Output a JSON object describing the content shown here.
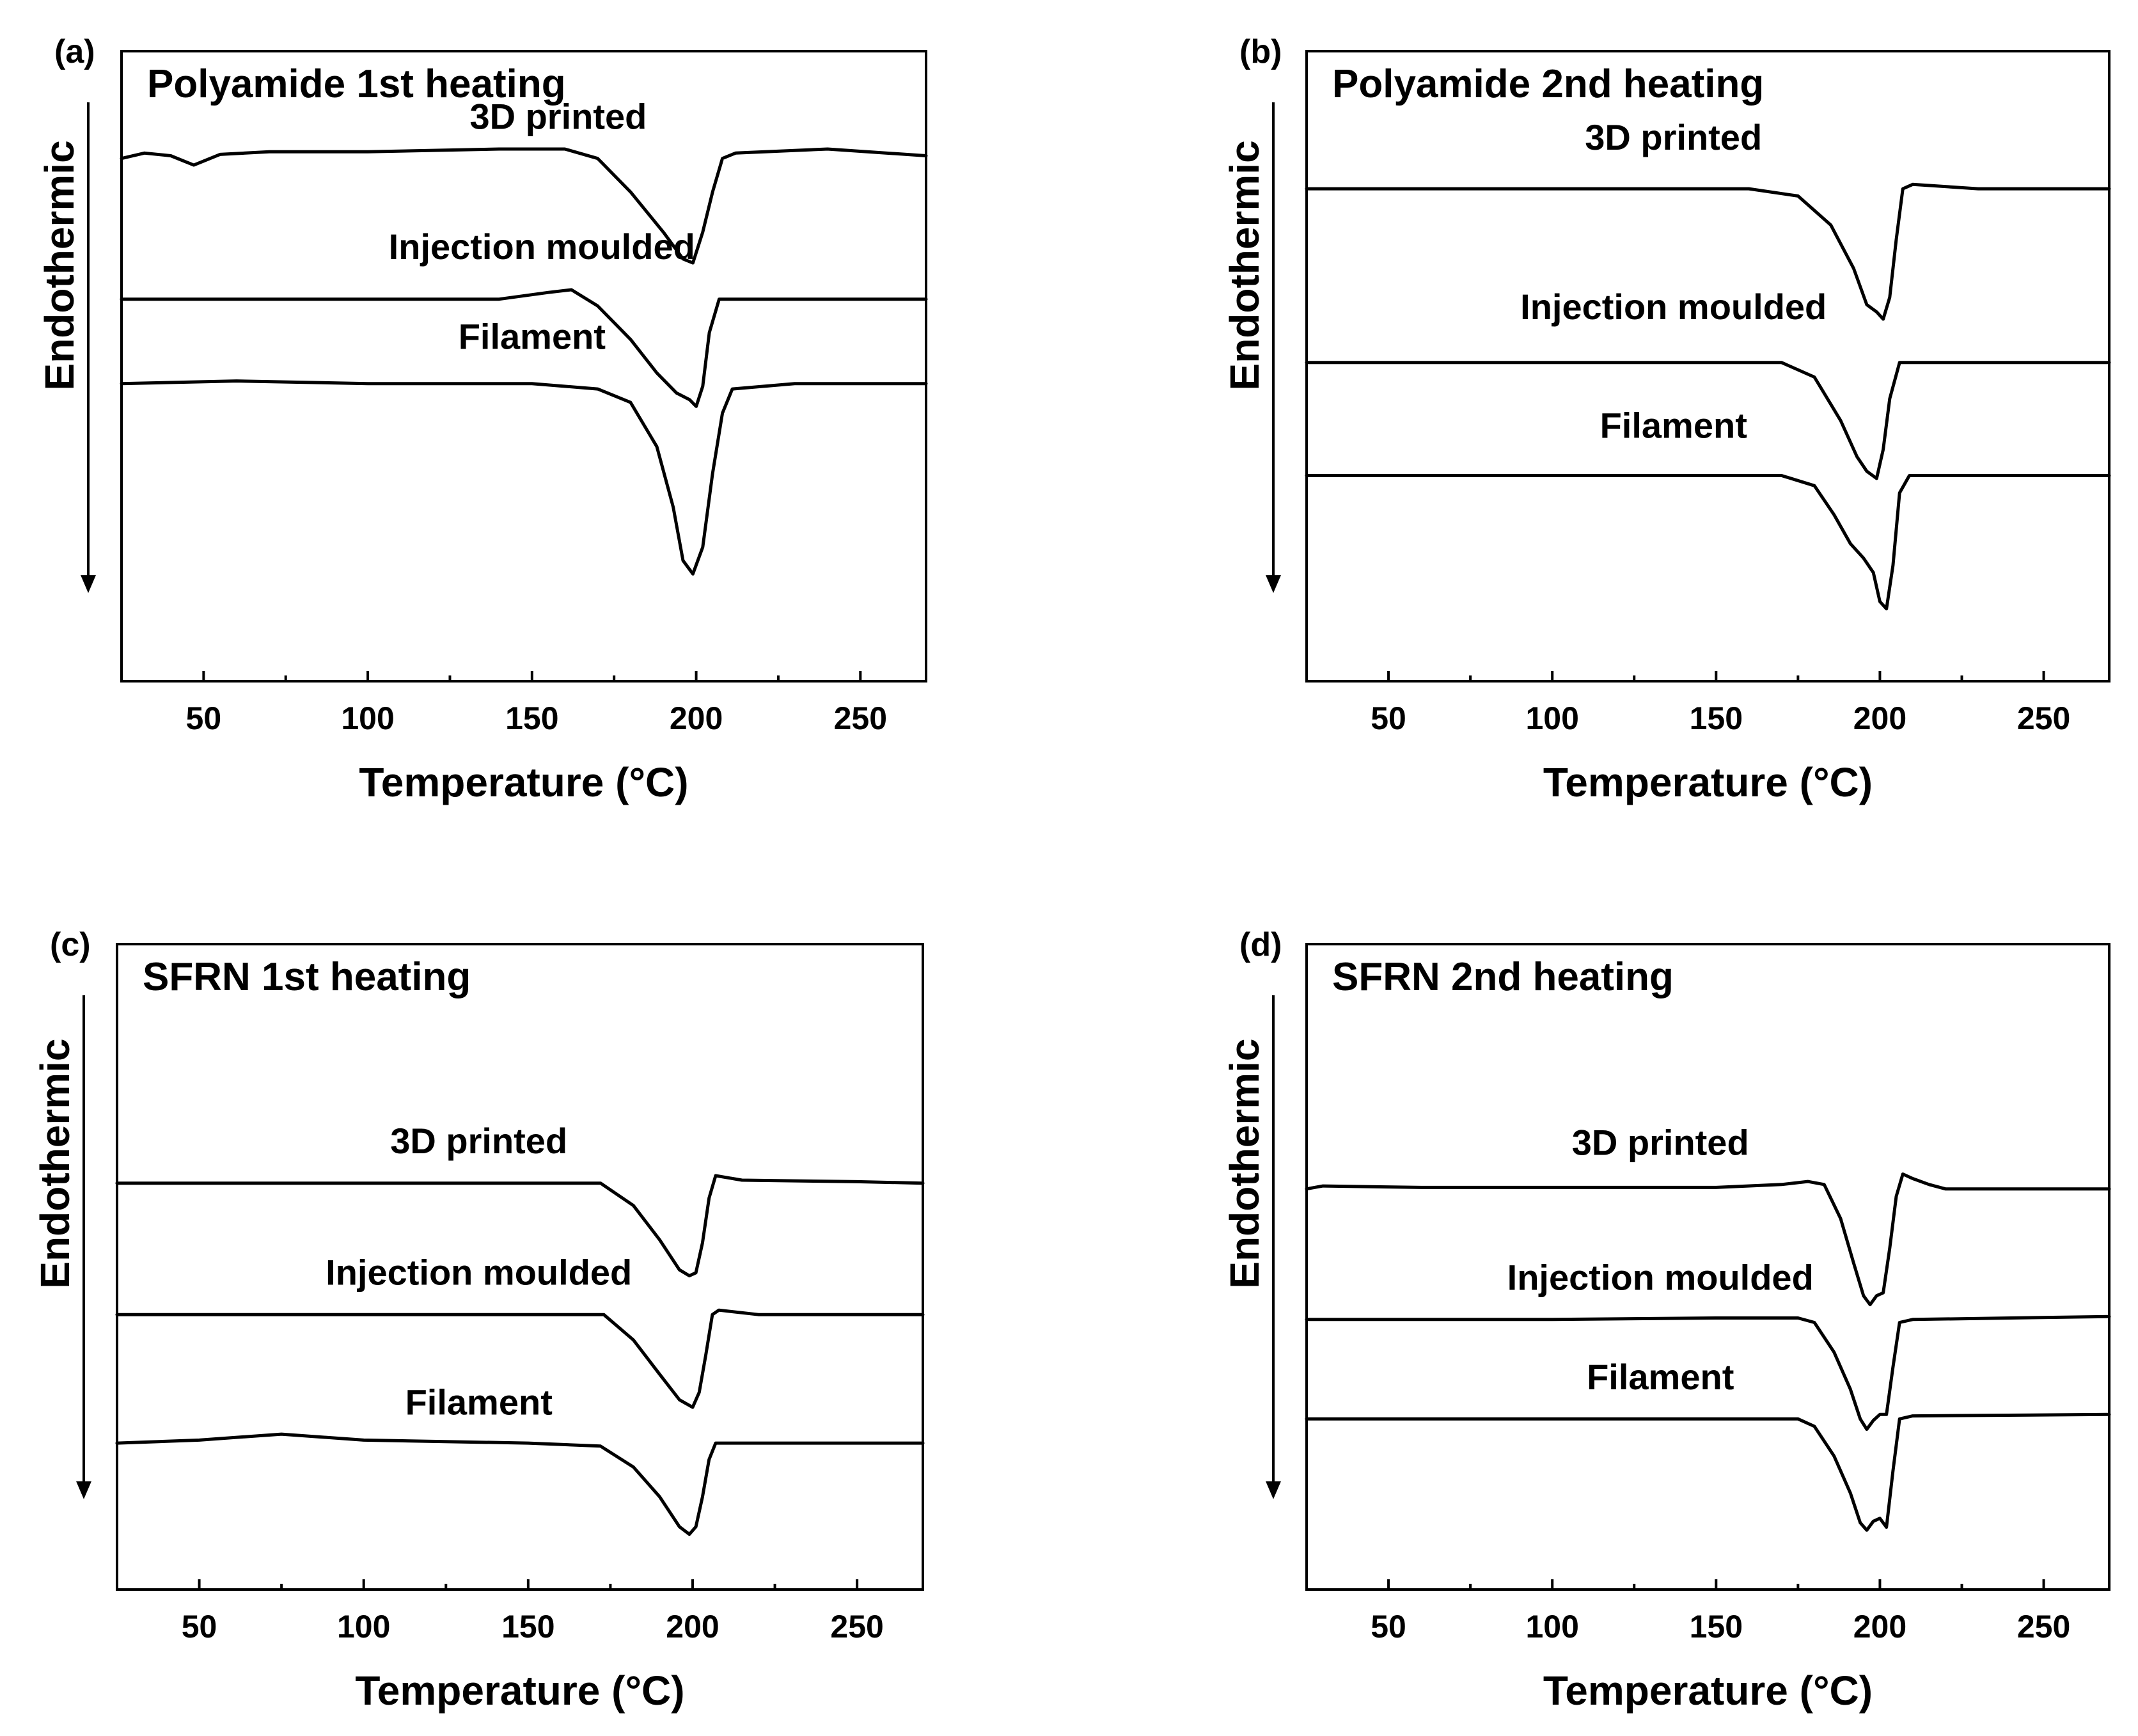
{
  "figure": {
    "background": "#ffffff",
    "line_color": "#000000"
  },
  "chart_data": [
    {
      "type": "line",
      "panel": "(a)",
      "title": "Polyamide 1st heating",
      "xlabel": "Temperature (°C)",
      "ylabel": "Endothermic",
      "xlim": [
        25,
        270
      ],
      "xticks": [
        50,
        100,
        150,
        200,
        250
      ],
      "ylim": [
        -3.9,
        0.8
      ],
      "yticks_visible": false,
      "series": [
        {
          "name": "3D printed",
          "label_at": 158,
          "label_y": 0.22,
          "points": [
            [
              25,
              0
            ],
            [
              32,
              0.04
            ],
            [
              40,
              0.02
            ],
            [
              47,
              -0.05
            ],
            [
              55,
              0.03
            ],
            [
              70,
              0.05
            ],
            [
              100,
              0.05
            ],
            [
              140,
              0.07
            ],
            [
              160,
              0.07
            ],
            [
              170,
              0
            ],
            [
              180,
              -0.25
            ],
            [
              190,
              -0.55
            ],
            [
              196,
              -0.75
            ],
            [
              199,
              -0.78
            ],
            [
              202,
              -0.55
            ],
            [
              205,
              -0.25
            ],
            [
              208,
              0.0
            ],
            [
              212,
              0.04
            ],
            [
              240,
              0.07
            ],
            [
              270,
              0.02
            ]
          ]
        },
        {
          "name": "Injection moulded",
          "label_at": 153,
          "label_y": -0.75,
          "points": [
            [
              25,
              -1.05
            ],
            [
              80,
              -1.05
            ],
            [
              140,
              -1.05
            ],
            [
              155,
              -1.0
            ],
            [
              162,
              -0.98
            ],
            [
              170,
              -1.1
            ],
            [
              180,
              -1.35
            ],
            [
              188,
              -1.6
            ],
            [
              194,
              -1.75
            ],
            [
              198,
              -1.8
            ],
            [
              200,
              -1.85
            ],
            [
              202,
              -1.7
            ],
            [
              204,
              -1.3
            ],
            [
              207,
              -1.05
            ],
            [
              220,
              -1.05
            ],
            [
              270,
              -1.05
            ]
          ]
        },
        {
          "name": "Filament",
          "label_at": 150,
          "label_y": -1.42,
          "points": [
            [
              25,
              -1.68
            ],
            [
              60,
              -1.66
            ],
            [
              100,
              -1.68
            ],
            [
              150,
              -1.68
            ],
            [
              170,
              -1.72
            ],
            [
              180,
              -1.82
            ],
            [
              188,
              -2.15
            ],
            [
              193,
              -2.6
            ],
            [
              196,
              -3.0
            ],
            [
              199,
              -3.1
            ],
            [
              202,
              -2.9
            ],
            [
              205,
              -2.35
            ],
            [
              208,
              -1.9
            ],
            [
              211,
              -1.72
            ],
            [
              230,
              -1.68
            ],
            [
              270,
              -1.68
            ]
          ]
        }
      ]
    },
    {
      "type": "line",
      "panel": "(b)",
      "title": "Polyamide 2nd heating",
      "xlabel": "Temperature (°C)",
      "ylabel": "Endothermic",
      "xlim": [
        25,
        270
      ],
      "xticks": [
        50,
        100,
        150,
        200,
        250
      ],
      "ylim": [
        -3.4,
        0.95
      ],
      "yticks_visible": false,
      "series": [
        {
          "name": "3D printed",
          "label_at": 137,
          "label_y": 0.27,
          "points": [
            [
              25,
              0
            ],
            [
              100,
              0
            ],
            [
              160,
              0.0
            ],
            [
              175,
              -0.05
            ],
            [
              185,
              -0.25
            ],
            [
              192,
              -0.55
            ],
            [
              196,
              -0.8
            ],
            [
              199,
              -0.85
            ],
            [
              201,
              -0.9
            ],
            [
              203,
              -0.75
            ],
            [
              205,
              -0.35
            ],
            [
              207,
              0.0
            ],
            [
              210,
              0.03
            ],
            [
              230,
              0.0
            ],
            [
              270,
              0.0
            ]
          ]
        },
        {
          "name": "Injection moulded",
          "label_at": 137,
          "label_y": -0.9,
          "points": [
            [
              25,
              -1.2
            ],
            [
              100,
              -1.2
            ],
            [
              170,
              -1.2
            ],
            [
              180,
              -1.3
            ],
            [
              188,
              -1.6
            ],
            [
              193,
              -1.85
            ],
            [
              196,
              -1.95
            ],
            [
              199,
              -2.0
            ],
            [
              201,
              -1.8
            ],
            [
              203,
              -1.45
            ],
            [
              206,
              -1.2
            ],
            [
              220,
              -1.2
            ],
            [
              270,
              -1.2
            ]
          ]
        },
        {
          "name": "Filament",
          "label_at": 137,
          "label_y": -1.72,
          "points": [
            [
              25,
              -1.98
            ],
            [
              100,
              -1.98
            ],
            [
              170,
              -1.98
            ],
            [
              180,
              -2.05
            ],
            [
              186,
              -2.25
            ],
            [
              191,
              -2.45
            ],
            [
              195,
              -2.55
            ],
            [
              198,
              -2.65
            ],
            [
              200,
              -2.85
            ],
            [
              202,
              -2.9
            ],
            [
              204,
              -2.6
            ],
            [
              206,
              -2.1
            ],
            [
              209,
              -1.98
            ],
            [
              220,
              -1.98
            ],
            [
              270,
              -1.98
            ]
          ]
        }
      ]
    },
    {
      "type": "line",
      "panel": "(c)",
      "title": "SFRN 1st heating",
      "xlabel": "Temperature (°C)",
      "ylabel": "Endothermic",
      "xlim": [
        25,
        270
      ],
      "xticks": [
        50,
        100,
        150,
        200,
        250
      ],
      "ylim": [
        -2.72,
        1.6
      ],
      "yticks_visible": false,
      "series": [
        {
          "name": "3D printed",
          "label_at": 135,
          "label_y": 0.2,
          "points": [
            [
              25,
              0
            ],
            [
              60,
              0
            ],
            [
              100,
              0
            ],
            [
              150,
              0
            ],
            [
              172,
              0
            ],
            [
              182,
              -0.15
            ],
            [
              190,
              -0.38
            ],
            [
              196,
              -0.58
            ],
            [
              199,
              -0.62
            ],
            [
              201,
              -0.6
            ],
            [
              203,
              -0.4
            ],
            [
              205,
              -0.1
            ],
            [
              207,
              0.05
            ],
            [
              215,
              0.02
            ],
            [
              250,
              0.01
            ],
            [
              270,
              0.0
            ]
          ]
        },
        {
          "name": "Injection moulded",
          "label_at": 135,
          "label_y": -0.68,
          "points": [
            [
              25,
              -0.88
            ],
            [
              100,
              -0.88
            ],
            [
              150,
              -0.88
            ],
            [
              173,
              -0.88
            ],
            [
              182,
              -1.05
            ],
            [
              190,
              -1.28
            ],
            [
              196,
              -1.45
            ],
            [
              200,
              -1.5
            ],
            [
              202,
              -1.4
            ],
            [
              204,
              -1.15
            ],
            [
              206,
              -0.88
            ],
            [
              208,
              -0.85
            ],
            [
              220,
              -0.88
            ],
            [
              270,
              -0.88
            ]
          ]
        },
        {
          "name": "Filament",
          "label_at": 135,
          "label_y": -1.55,
          "points": [
            [
              25,
              -1.74
            ],
            [
              50,
              -1.72
            ],
            [
              75,
              -1.68
            ],
            [
              100,
              -1.72
            ],
            [
              150,
              -1.74
            ],
            [
              172,
              -1.76
            ],
            [
              182,
              -1.9
            ],
            [
              190,
              -2.1
            ],
            [
              196,
              -2.3
            ],
            [
              199,
              -2.35
            ],
            [
              201,
              -2.3
            ],
            [
              203,
              -2.1
            ],
            [
              205,
              -1.85
            ],
            [
              207,
              -1.74
            ],
            [
              220,
              -1.74
            ],
            [
              270,
              -1.74
            ]
          ]
        }
      ]
    },
    {
      "type": "line",
      "panel": "(d)",
      "title": "SFRN 2nd heating",
      "xlabel": "Temperature (°C)",
      "ylabel": "Endothermic",
      "xlim": [
        25,
        270
      ],
      "xticks": [
        50,
        100,
        150,
        200,
        250
      ],
      "ylim": [
        -2.7,
        1.65
      ],
      "yticks_visible": false,
      "series": [
        {
          "name": "3D printed",
          "label_at": 133,
          "label_y": 0.23,
          "points": [
            [
              25,
              0
            ],
            [
              30,
              0.02
            ],
            [
              60,
              0.01
            ],
            [
              100,
              0.01
            ],
            [
              150,
              0.01
            ],
            [
              170,
              0.03
            ],
            [
              178,
              0.05
            ],
            [
              183,
              0.03
            ],
            [
              188,
              -0.2
            ],
            [
              192,
              -0.5
            ],
            [
              195,
              -0.72
            ],
            [
              197,
              -0.78
            ],
            [
              199,
              -0.72
            ],
            [
              201,
              -0.7
            ],
            [
              203,
              -0.4
            ],
            [
              205,
              -0.05
            ],
            [
              207,
              0.1
            ],
            [
              210,
              0.07
            ],
            [
              215,
              0.03
            ],
            [
              220,
              0.0
            ],
            [
              270,
              0.0
            ]
          ]
        },
        {
          "name": "Injection moulded",
          "label_at": 133,
          "label_y": -0.68,
          "points": [
            [
              25,
              -0.88
            ],
            [
              100,
              -0.88
            ],
            [
              150,
              -0.87
            ],
            [
              175,
              -0.87
            ],
            [
              180,
              -0.9
            ],
            [
              186,
              -1.1
            ],
            [
              191,
              -1.35
            ],
            [
              194,
              -1.55
            ],
            [
              196,
              -1.62
            ],
            [
              198,
              -1.56
            ],
            [
              200,
              -1.52
            ],
            [
              202,
              -1.52
            ],
            [
              204,
              -1.2
            ],
            [
              206,
              -0.9
            ],
            [
              210,
              -0.88
            ],
            [
              270,
              -0.86
            ]
          ]
        },
        {
          "name": "Filament",
          "label_at": 133,
          "label_y": -1.35,
          "points": [
            [
              25,
              -1.55
            ],
            [
              100,
              -1.55
            ],
            [
              150,
              -1.55
            ],
            [
              175,
              -1.55
            ],
            [
              180,
              -1.6
            ],
            [
              186,
              -1.8
            ],
            [
              191,
              -2.05
            ],
            [
              194,
              -2.25
            ],
            [
              196,
              -2.3
            ],
            [
              198,
              -2.24
            ],
            [
              200,
              -2.22
            ],
            [
              202,
              -2.28
            ],
            [
              204,
              -1.9
            ],
            [
              206,
              -1.55
            ],
            [
              210,
              -1.53
            ],
            [
              270,
              -1.52
            ]
          ]
        }
      ]
    }
  ]
}
